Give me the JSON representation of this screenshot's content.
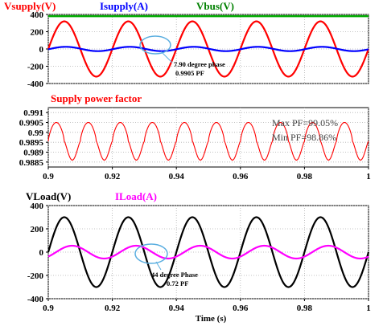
{
  "chart_data": [
    {
      "type": "line",
      "series": [
        {
          "name": "Vsupply(V)",
          "color": "#ff0000",
          "amplitude": 320,
          "frequency_hz": 50,
          "phase_deg": 0
        },
        {
          "name": "Isupply(A)",
          "color": "#0000ff",
          "amplitude": 25,
          "frequency_hz": 50,
          "phase_deg": 7.9
        },
        {
          "name": "Vbus(V)",
          "color": "#00aa00",
          "constant": 380
        }
      ],
      "x_range": [
        0.9,
        1.0
      ],
      "ylim": [
        -400,
        400
      ],
      "y_ticks": [
        "400",
        "200",
        "0",
        "-200",
        "-400"
      ],
      "annotation": [
        "7.90 degree phase",
        "0.9905 PF"
      ],
      "grid": true
    },
    {
      "type": "line",
      "title": "Supply power factor",
      "series": [
        {
          "name": "power factor",
          "color": "#ff0000",
          "frequency_hz": 100,
          "min": 0.9886,
          "max": 0.9905
        }
      ],
      "xlim": [
        0.9,
        1.0
      ],
      "x_ticks": [
        "0.9",
        "0.92",
        "0.94",
        "0.96",
        "0.98",
        "1"
      ],
      "ylim": [
        0.98825,
        0.99125
      ],
      "y_ticks": [
        "0.991",
        "0.9905",
        "0.99",
        "0.9895",
        "0.989",
        "0.9885"
      ],
      "annotations": [
        "Max PF=99.05%",
        "Min PF=98.86%"
      ],
      "grid": true
    },
    {
      "type": "line",
      "series": [
        {
          "name": "VLoad(V)",
          "color": "#000000",
          "amplitude": 300,
          "frequency_hz": 50,
          "phase_deg": 0
        },
        {
          "name": "ILoad(A)",
          "color": "#ff00ff",
          "amplitude": 55,
          "frequency_hz": 50,
          "phase_deg": 44
        }
      ],
      "xlim": [
        0.9,
        1.0
      ],
      "x_ticks": [
        "0.9",
        "0.92",
        "0.94",
        "0.96",
        "0.98",
        "1"
      ],
      "xlabel": "Time (s)",
      "ylim": [
        -400,
        400
      ],
      "y_ticks": [
        "400",
        "200",
        "0",
        "-200",
        "-400"
      ],
      "annotation": [
        "44 degree Phase",
        "0.72 PF"
      ],
      "grid": true
    }
  ]
}
